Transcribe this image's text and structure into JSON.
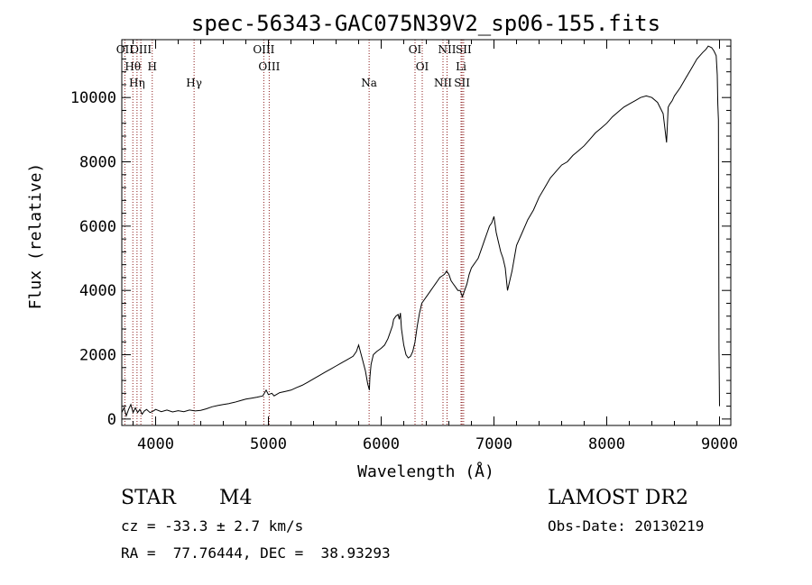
{
  "chart_data": {
    "type": "line",
    "title": "spec-56343-GAC075N39V2_sp06-155.fits",
    "xlabel": "Wavelength (Å)",
    "ylabel": "Flux (relative)",
    "xlim": [
      3700,
      9100
    ],
    "ylim": [
      -200,
      11800
    ],
    "x_ticks": [
      4000,
      5000,
      6000,
      7000,
      8000,
      9000
    ],
    "y_ticks": [
      0,
      2000,
      4000,
      6000,
      8000,
      10000
    ],
    "series": [
      {
        "x": [
          3700,
          3720,
          3740,
          3760,
          3780,
          3800,
          3820,
          3840,
          3860,
          3880,
          3900,
          3920,
          3950,
          3980,
          4000,
          4050,
          4100,
          4150,
          4200,
          4250,
          4300,
          4350,
          4400,
          4450,
          4500,
          4550,
          4600,
          4650,
          4700,
          4750,
          4800,
          4850,
          4900,
          4950,
          4980,
          5000,
          5030,
          5050,
          5100,
          5150,
          5200,
          5250,
          5300,
          5350,
          5400,
          5450,
          5500,
          5550,
          5600,
          5650,
          5700,
          5750,
          5780,
          5800,
          5830,
          5860,
          5880,
          5895,
          5900,
          5910,
          5930,
          5960,
          6000,
          6030,
          6060,
          6080,
          6100,
          6110,
          6130,
          6150,
          6160,
          6170,
          6180,
          6200,
          6220,
          6240,
          6260,
          6280,
          6300,
          6320,
          6340,
          6360,
          6380,
          6400,
          6420,
          6440,
          6460,
          6480,
          6500,
          6520,
          6540,
          6560,
          6580,
          6600,
          6620,
          6640,
          6660,
          6680,
          6700,
          6720,
          6740,
          6760,
          6780,
          6800,
          6820,
          6840,
          6860,
          6880,
          6900,
          6920,
          6940,
          6960,
          6980,
          7000,
          7020,
          7040,
          7060,
          7080,
          7100,
          7120,
          7140,
          7160,
          7180,
          7200,
          7250,
          7300,
          7350,
          7400,
          7450,
          7500,
          7550,
          7600,
          7650,
          7700,
          7750,
          7800,
          7850,
          7900,
          7950,
          8000,
          8050,
          8100,
          8150,
          8200,
          8250,
          8300,
          8350,
          8400,
          8450,
          8500,
          8530,
          8545,
          8560,
          8580,
          8600,
          8650,
          8700,
          8750,
          8800,
          8850,
          8880,
          8900,
          8930,
          8950,
          8970,
          8980,
          8985,
          8990,
          8995,
          9000
        ],
        "y": [
          200,
          350,
          100,
          300,
          450,
          200,
          350,
          200,
          300,
          150,
          250,
          300,
          200,
          250,
          300,
          230,
          280,
          220,
          260,
          230,
          280,
          250,
          270,
          320,
          380,
          420,
          450,
          480,
          520,
          570,
          620,
          650,
          680,
          720,
          900,
          760,
          800,
          720,
          820,
          860,
          900,
          980,
          1050,
          1150,
          1250,
          1350,
          1450,
          1550,
          1650,
          1750,
          1850,
          1950,
          2100,
          2300,
          1900,
          1500,
          1100,
          900,
          1300,
          1700,
          2000,
          2100,
          2200,
          2300,
          2500,
          2700,
          2900,
          3100,
          3200,
          3250,
          3100,
          3300,
          2800,
          2300,
          2000,
          1900,
          1950,
          2100,
          2400,
          2900,
          3300,
          3600,
          3700,
          3800,
          3900,
          4000,
          4100,
          4200,
          4300,
          4400,
          4450,
          4500,
          4600,
          4500,
          4300,
          4200,
          4100,
          4000,
          4000,
          3800,
          4000,
          4200,
          4500,
          4700,
          4800,
          4900,
          5000,
          5200,
          5400,
          5600,
          5800,
          6000,
          6100,
          6300,
          5800,
          5500,
          5200,
          5000,
          4700,
          4000,
          4300,
          4600,
          5000,
          5400,
          5800,
          6200,
          6500,
          6900,
          7200,
          7500,
          7700,
          7900,
          8000,
          8200,
          8350,
          8500,
          8700,
          8900,
          9050,
          9200,
          9400,
          9550,
          9700,
          9800,
          9900,
          10000,
          10050,
          10000,
          9850,
          9500,
          8600,
          9700,
          9800,
          9900,
          10050,
          10300,
          10600,
          10900,
          11200,
          11400,
          11500,
          11600,
          11550,
          11450,
          11300,
          10700,
          9800,
          9300,
          2200,
          400
        ]
      }
    ],
    "emission_lines": [
      {
        "x": 3727,
        "label": "OII"
      },
      {
        "x": 3798,
        "label": "Hθ"
      },
      {
        "x": 3835,
        "label": "Hη"
      },
      {
        "x": 3869,
        "label": "OIII"
      },
      {
        "x": 3970,
        "label": "H"
      },
      {
        "x": 4341,
        "label": "Hγ"
      },
      {
        "x": 4959,
        "label": "OIII"
      },
      {
        "x": 5007,
        "label": "OIII"
      },
      {
        "x": 5893,
        "label": "Na"
      },
      {
        "x": 6300,
        "label": "OI"
      },
      {
        "x": 6364,
        "label": "OI"
      },
      {
        "x": 6548,
        "label": "NII"
      },
      {
        "x": 6584,
        "label": "NII"
      },
      {
        "x": 6708,
        "label": "Li"
      },
      {
        "x": 6717,
        "label": "SII"
      },
      {
        "x": 6731,
        "label": "SII"
      }
    ]
  },
  "info": {
    "class": "STAR",
    "subclass": "M4",
    "redshift": "cz = -33.3 ± 2.7 km/s",
    "coords": "RA =  77.76444, DEC =  38.93293",
    "survey": "LAMOST DR2",
    "obs_date": "Obs-Date: 20130219"
  }
}
